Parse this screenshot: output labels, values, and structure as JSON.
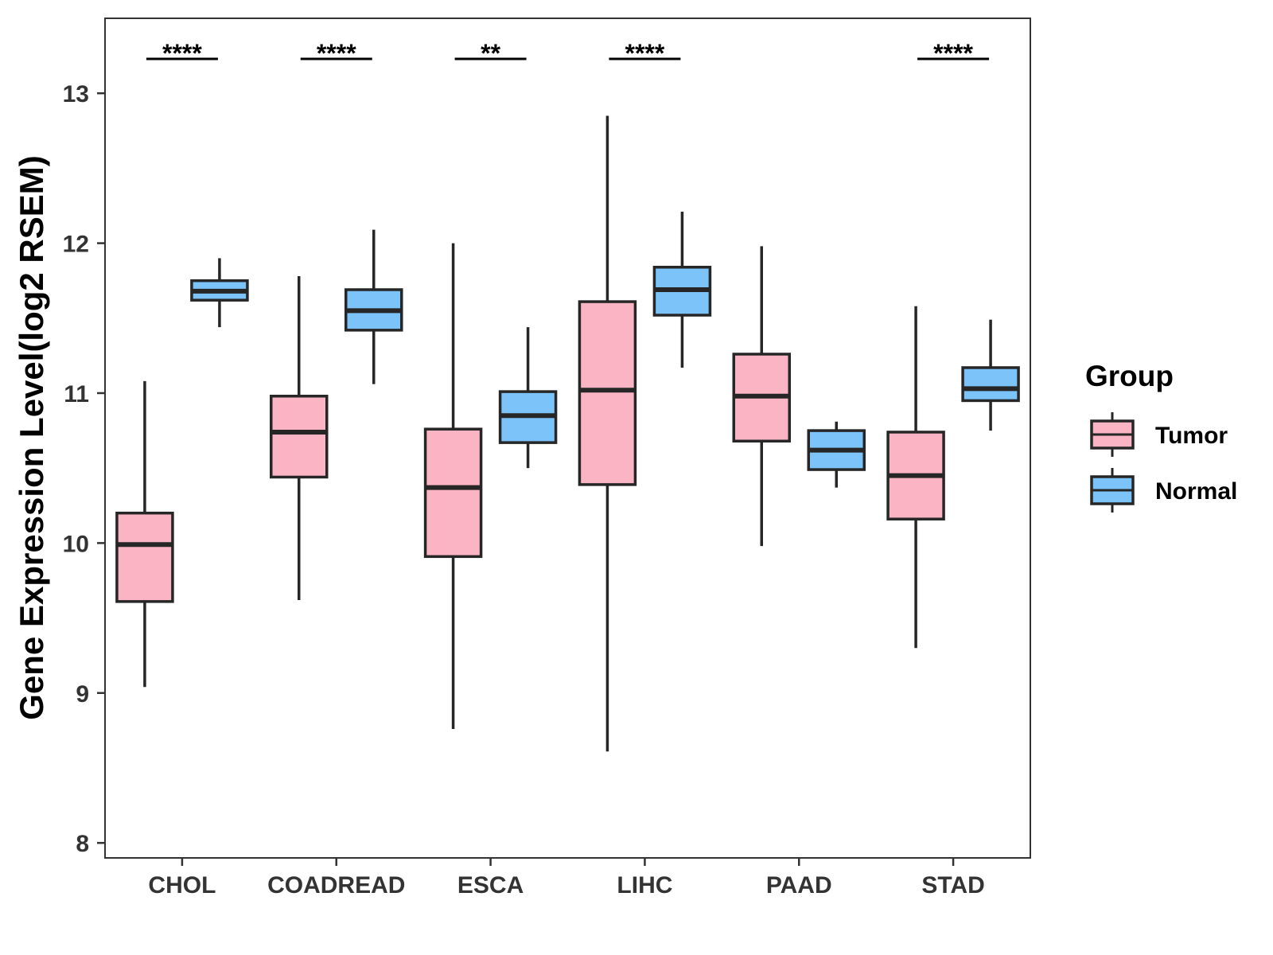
{
  "chart_data": {
    "type": "boxplot",
    "ylabel": "Gene Expression Level(log2 RSEM)",
    "xlabel": "",
    "ylim": [
      7.9,
      13.5
    ],
    "yticks": [
      8,
      9,
      10,
      11,
      12,
      13
    ],
    "categories": [
      "CHOL",
      "COADREAD",
      "ESCA",
      "LIHC",
      "PAAD",
      "STAD"
    ],
    "legend": {
      "title": "Group",
      "position": "right",
      "items": [
        {
          "name": "Tumor",
          "color": "#FBB4C4"
        },
        {
          "name": "Normal",
          "color": "#7CC3F9"
        }
      ]
    },
    "series": [
      {
        "name": "Tumor",
        "color": "#FBB4C4",
        "boxes": [
          {
            "min": 9.04,
            "q1": 9.61,
            "median": 9.99,
            "q3": 10.2,
            "max": 11.08
          },
          {
            "min": 9.62,
            "q1": 10.44,
            "median": 10.74,
            "q3": 10.98,
            "max": 11.78
          },
          {
            "min": 8.76,
            "q1": 9.91,
            "median": 10.37,
            "q3": 10.76,
            "max": 12.0
          },
          {
            "min": 8.61,
            "q1": 10.39,
            "median": 11.02,
            "q3": 11.61,
            "max": 12.85
          },
          {
            "min": 9.98,
            "q1": 10.68,
            "median": 10.98,
            "q3": 11.26,
            "max": 11.98
          },
          {
            "min": 9.3,
            "q1": 10.16,
            "median": 10.45,
            "q3": 10.74,
            "max": 11.58
          }
        ]
      },
      {
        "name": "Normal",
        "color": "#7CC3F9",
        "boxes": [
          {
            "min": 11.44,
            "q1": 11.62,
            "median": 11.68,
            "q3": 11.75,
            "max": 11.9
          },
          {
            "min": 11.06,
            "q1": 11.42,
            "median": 11.55,
            "q3": 11.69,
            "max": 12.09
          },
          {
            "min": 10.5,
            "q1": 10.67,
            "median": 10.85,
            "q3": 11.01,
            "max": 11.44
          },
          {
            "min": 11.17,
            "q1": 11.52,
            "median": 11.69,
            "q3": 11.84,
            "max": 12.21
          },
          {
            "min": 10.37,
            "q1": 10.49,
            "median": 10.62,
            "q3": 10.75,
            "max": 10.81
          },
          {
            "min": 10.75,
            "q1": 10.95,
            "median": 11.03,
            "q3": 11.17,
            "max": 11.49
          }
        ]
      }
    ],
    "significance": [
      "****",
      "****",
      "**",
      "****",
      "",
      "****"
    ]
  }
}
